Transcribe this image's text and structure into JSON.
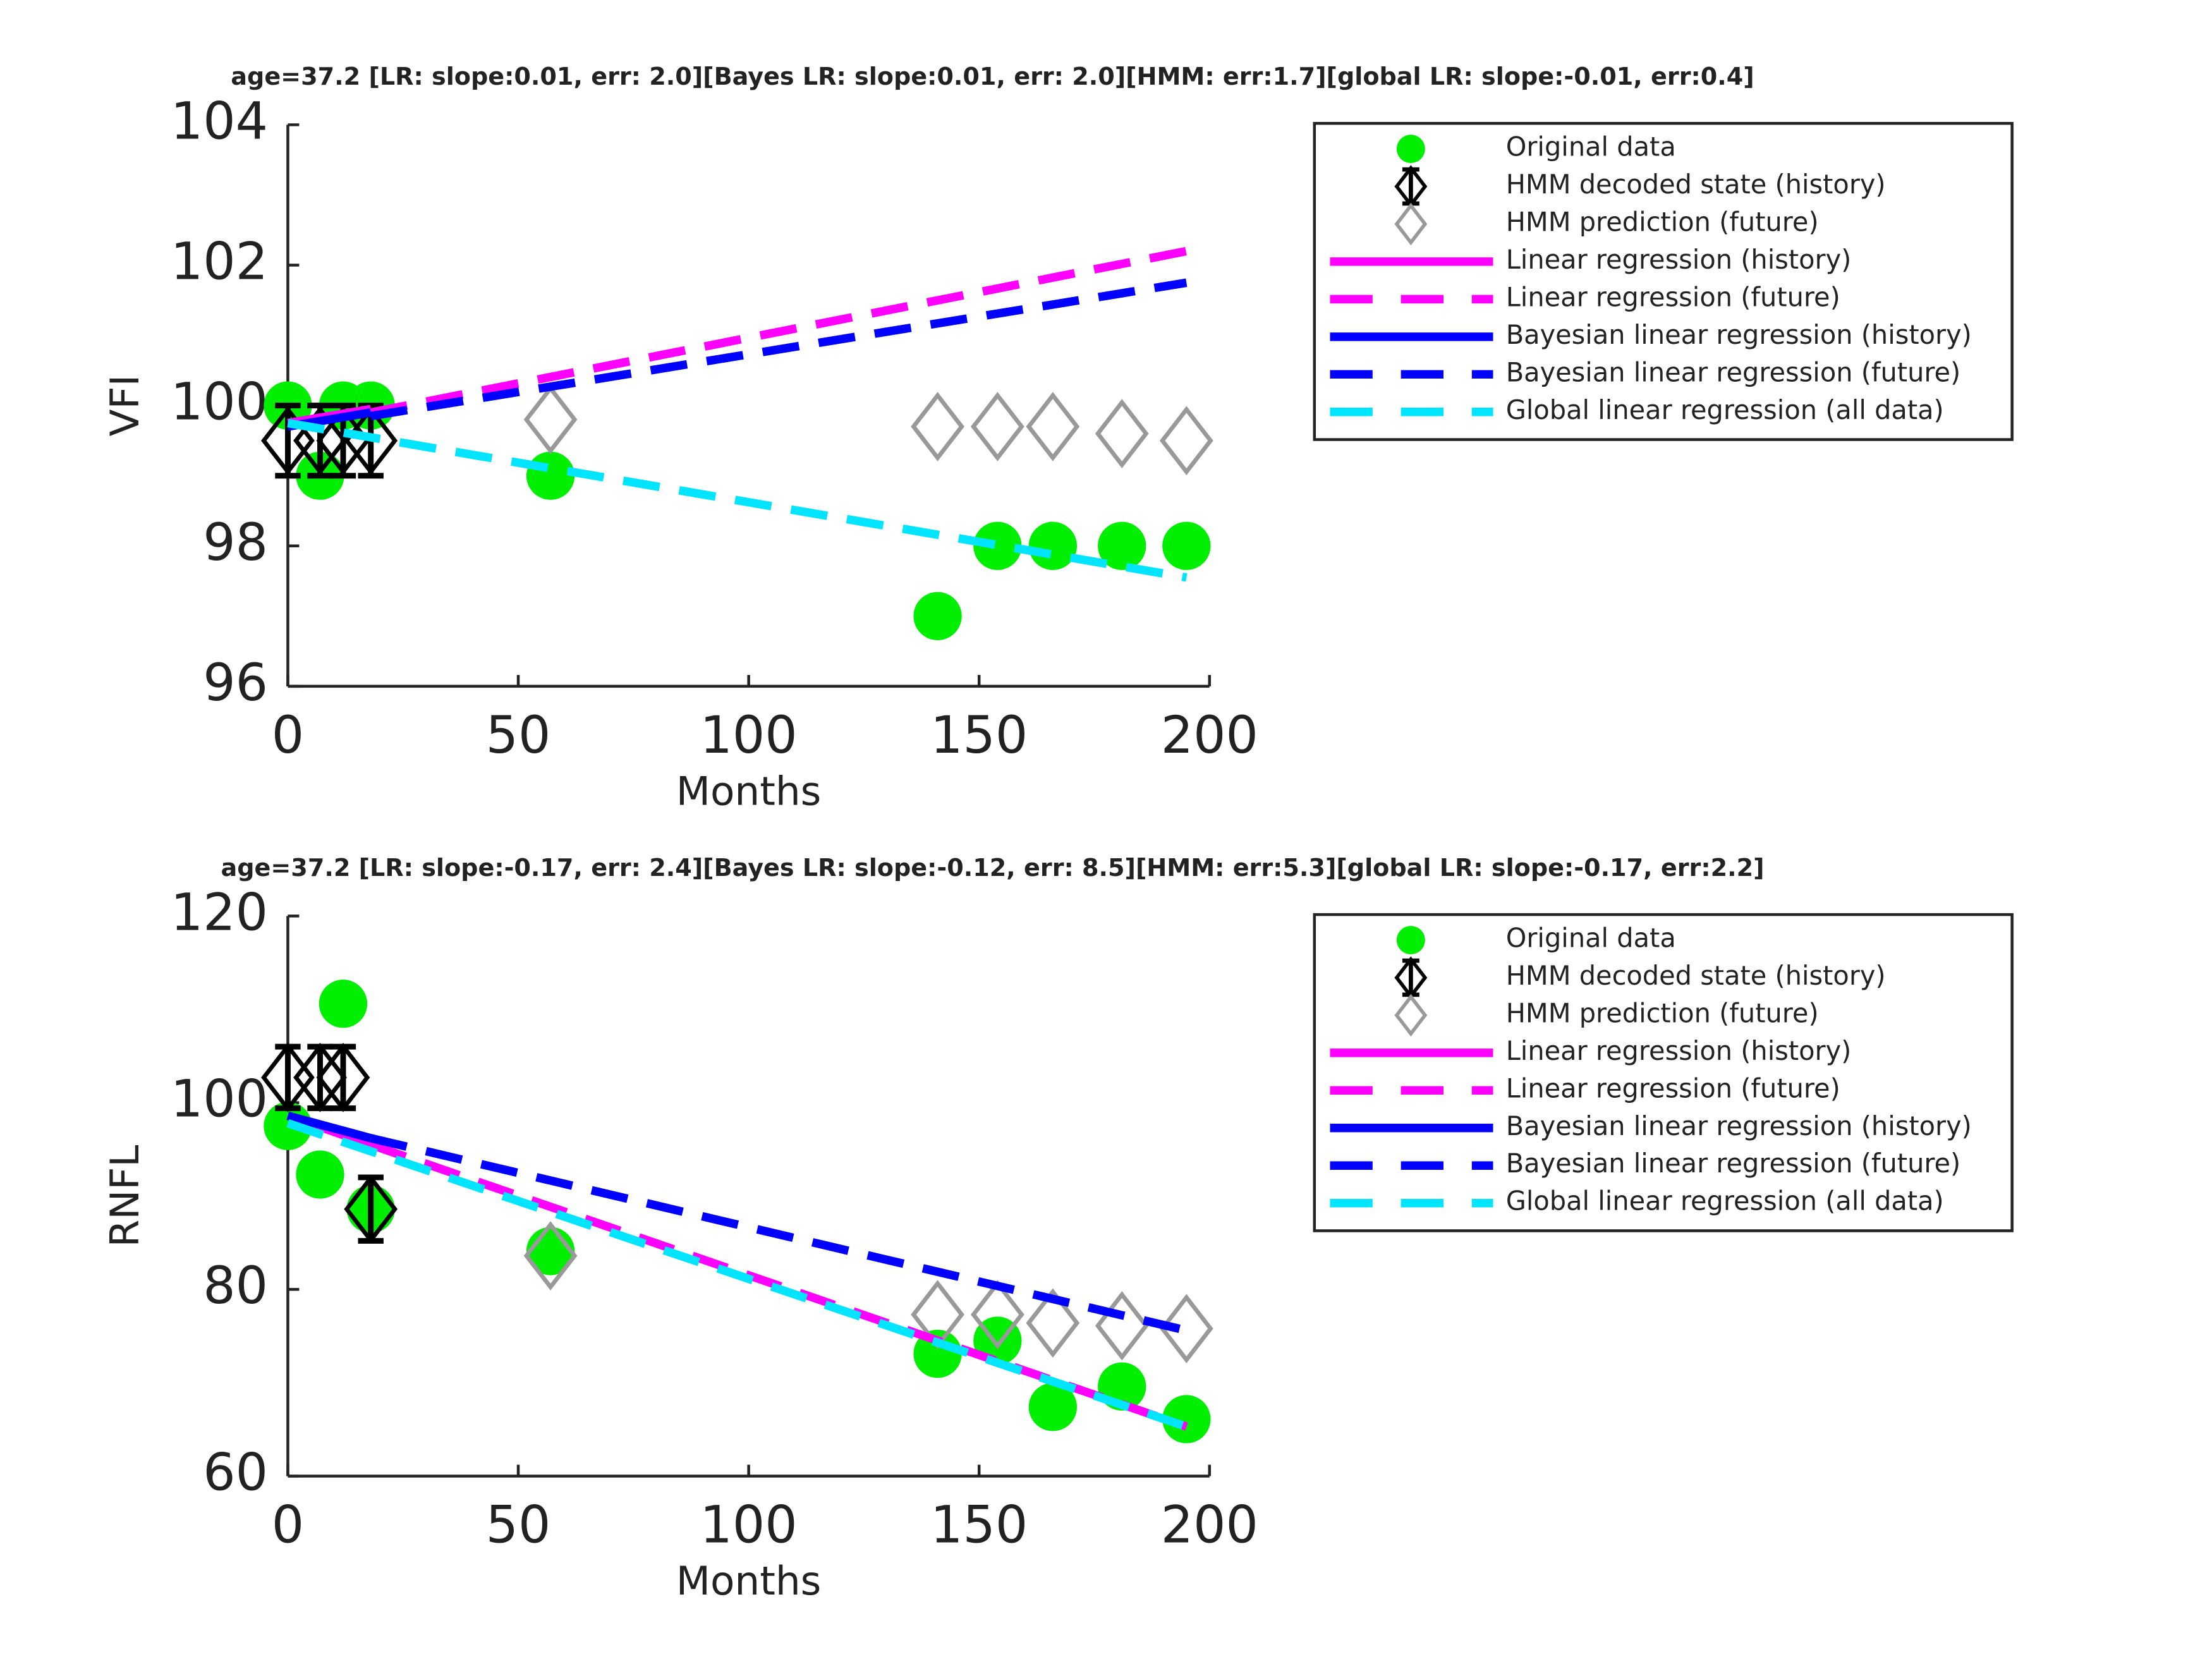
{
  "chart_data": [
    {
      "type": "line",
      "title": "age=37.2 [LR: slope:0.01, err: 2.0][Bayes LR: slope:0.01, err: 2.0][HMM: err:1.7][global LR: slope:-0.01, err:0.4]",
      "xlabel": "Months",
      "ylabel": "VFI",
      "xlim": [
        0,
        200
      ],
      "xticks": [
        0,
        50,
        100,
        150,
        200
      ],
      "ylim": [
        96,
        104
      ],
      "yticks": [
        96,
        98,
        100,
        102,
        104
      ],
      "legend": "outside right",
      "series": [
        {
          "name": "Original data",
          "color": "#00ee00",
          "marker": "circle",
          "x": [
            0,
            7,
            12,
            18,
            57,
            141,
            154,
            166,
            181,
            195
          ],
          "values": [
            100,
            99,
            100,
            100,
            99,
            97,
            98,
            98,
            98,
            98
          ]
        },
        {
          "name": "HMM decoded state (history)",
          "color": "#000000",
          "marker": "diamond",
          "x": [
            0,
            7,
            12,
            18
          ],
          "values": [
            99.5,
            99.5,
            99.5,
            99.5
          ],
          "errors": [
            0.5,
            0.5,
            0.5,
            0.5
          ]
        },
        {
          "name": "HMM prediction (future)",
          "color": "#999999",
          "marker": "diamond",
          "x": [
            57,
            141,
            154,
            166,
            181,
            195
          ],
          "values": [
            99.8,
            99.7,
            99.7,
            99.7,
            99.6,
            99.5
          ]
        },
        {
          "name": "Linear regression (history)",
          "color": "#ff00ff",
          "line": "solid",
          "x": [
            0,
            18
          ],
          "values": [
            99.75,
            99.95
          ]
        },
        {
          "name": "Linear regression (future)",
          "color": "#ff00ff",
          "line": "dashed",
          "x": [
            18,
            195
          ],
          "values": [
            99.9,
            102.2
          ]
        },
        {
          "name": "Bayesian linear regression (history)",
          "color": "#0000ff",
          "line": "solid",
          "x": [
            0,
            18
          ],
          "values": [
            99.7,
            99.9
          ]
        },
        {
          "name": "Bayesian linear regression (future)",
          "color": "#0000ff",
          "line": "dashed",
          "x": [
            18,
            195
          ],
          "values": [
            99.85,
            101.75
          ]
        },
        {
          "name": "Global linear regression (all data)",
          "color": "#00e5ff",
          "line": "dashed",
          "x": [
            0,
            195
          ],
          "values": [
            99.75,
            97.55
          ]
        }
      ]
    },
    {
      "type": "line",
      "title": "age=37.2 [LR: slope:-0.17, err: 2.4][Bayes LR: slope:-0.12, err: 8.5][HMM: err:5.3][global LR: slope:-0.17, err:2.2]",
      "xlabel": "Months",
      "ylabel": "RNFL",
      "xlim": [
        0,
        200
      ],
      "xticks": [
        0,
        50,
        100,
        150,
        200
      ],
      "ylim": [
        60,
        120
      ],
      "yticks": [
        60,
        80,
        100,
        120
      ],
      "legend": "outside right",
      "series": [
        {
          "name": "Original data",
          "color": "#00ee00",
          "marker": "circle",
          "x": [
            0,
            7,
            12,
            18,
            57,
            141,
            154,
            166,
            181,
            195
          ],
          "values": [
            97.5,
            92.3,
            110.6,
            88.6,
            84.1,
            73.1,
            74.5,
            67.4,
            69.6,
            66.1
          ]
        },
        {
          "name": "HMM decoded state (history)",
          "color": "#000000",
          "marker": "diamond",
          "x": [
            0,
            7,
            12,
            18
          ],
          "values": [
            102.7,
            102.7,
            102.7,
            88.6
          ],
          "errors": [
            3.3,
            3.3,
            3.3,
            3.4
          ]
        },
        {
          "name": "HMM prediction (future)",
          "color": "#999999",
          "marker": "diamond",
          "x": [
            57,
            141,
            154,
            166,
            181,
            195
          ],
          "values": [
            83.6,
            77.3,
            77.3,
            76.4,
            76.1,
            75.8
          ]
        },
        {
          "name": "Linear regression (history)",
          "color": "#ff00ff",
          "line": "solid",
          "x": [
            0,
            18
          ],
          "values": [
            98.6,
            95.5
          ]
        },
        {
          "name": "Linear regression (future)",
          "color": "#ff00ff",
          "line": "dashed",
          "x": [
            18,
            195
          ],
          "values": [
            95.5,
            65.3
          ]
        },
        {
          "name": "Bayesian linear regression (history)",
          "color": "#0000ff",
          "line": "solid",
          "x": [
            0,
            18
          ],
          "values": [
            98.6,
            96.2
          ]
        },
        {
          "name": "Bayesian linear regression (future)",
          "color": "#0000ff",
          "line": "dashed",
          "x": [
            18,
            195
          ],
          "values": [
            96.2,
            75.6
          ]
        },
        {
          "name": "Global linear regression (all data)",
          "color": "#00e5ff",
          "line": "dashed",
          "x": [
            0,
            195
          ],
          "values": [
            97.8,
            65.3
          ]
        }
      ]
    }
  ]
}
